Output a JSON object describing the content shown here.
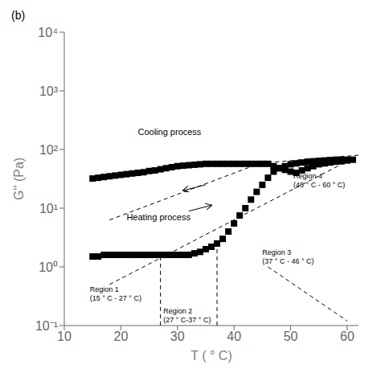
{
  "chart_data": {
    "type": "scatter",
    "title": "(b)",
    "xlabel": "T ( ° C)",
    "ylabel": "G'' (Pa)",
    "log": "y",
    "grid": false,
    "xlim": [
      10,
      62
    ],
    "xticks": [
      10,
      20,
      30,
      40,
      50,
      60
    ],
    "ylim": [
      0.1,
      10000
    ],
    "yticks": [
      {
        "value": 0.1,
        "label": "10⁻¹"
      },
      {
        "value": 1,
        "label": "10⁰"
      },
      {
        "value": 10,
        "label": "10¹"
      },
      {
        "value": 100,
        "label": "10²"
      },
      {
        "value": 1000,
        "label": "10³"
      },
      {
        "value": 10000,
        "label": "10⁴"
      }
    ],
    "series": [
      {
        "x": [
          15,
          16,
          17,
          18,
          19,
          20,
          21,
          22,
          23,
          24,
          25,
          26,
          27,
          28,
          29,
          30,
          31,
          32,
          33,
          34,
          35,
          36,
          37,
          38,
          39,
          40,
          41,
          42,
          43,
          44,
          45,
          46,
          47,
          48,
          49,
          50,
          51,
          52,
          53,
          54,
          55,
          56,
          57,
          58,
          59,
          60,
          61
        ],
        "values": [
          32,
          33,
          34,
          35,
          36,
          37,
          38,
          39,
          40,
          41,
          43,
          44,
          46,
          48,
          50,
          52,
          53,
          54,
          55,
          56,
          57,
          57,
          57,
          57,
          57,
          57,
          57,
          57,
          57,
          57,
          57,
          57,
          52,
          48,
          45,
          42,
          40,
          44,
          48,
          52,
          56,
          58,
          60,
          62,
          63,
          65,
          67
        ],
        "color": "black",
        "marker": "square"
      },
      {
        "x": [
          15,
          16,
          17,
          18,
          19,
          20,
          21,
          22,
          23,
          24,
          25,
          26,
          27,
          28,
          29,
          30,
          31,
          32,
          33,
          34,
          35,
          36,
          37,
          38,
          39,
          40,
          41,
          42,
          43,
          44,
          45,
          46,
          47,
          48,
          49,
          50,
          51,
          52,
          53,
          54,
          55,
          56,
          57,
          58,
          59,
          60
        ],
        "values": [
          1.5,
          1.5,
          1.6,
          1.6,
          1.6,
          1.6,
          1.6,
          1.6,
          1.6,
          1.6,
          1.6,
          1.6,
          1.6,
          1.6,
          1.6,
          1.6,
          1.6,
          1.6,
          1.7,
          1.8,
          2.0,
          2.2,
          2.5,
          3.0,
          4.0,
          5.5,
          7.5,
          10.0,
          14.0,
          19.0,
          25.0,
          33.0,
          42.0,
          48.0,
          52.0,
          56.0,
          58.0,
          60.0,
          62.0,
          63.0,
          64.0,
          65.0,
          66.0,
          67.0,
          67.0,
          67.0
        ],
        "color": "black",
        "marker": "square"
      }
    ],
    "lines": [
      {
        "x": [
          18,
          60
        ],
        "values": [
          0.5011872336272722,
          63.09573444801933
        ],
        "color": "black",
        "line_style": "dashed"
      },
      {
        "x": [
          18,
          45
        ],
        "values": [
          6.309573444801933,
          60.25595860743578
        ],
        "color": "black",
        "line_style": "dashed"
      },
      {
        "x": [
          27,
          27
        ],
        "values": [
          0.1,
          1.6
        ],
        "color": "black",
        "line_style": "dashed"
      },
      {
        "x": [
          37,
          37
        ],
        "values": [
          0.1,
          2.5
        ],
        "color": "black",
        "line_style": "dashed"
      },
      {
        "x": [
          46,
          60
        ],
        "values": [
          1.0,
          0.12
        ],
        "color": "black",
        "line_style": "dashed"
      },
      {
        "x": [
          46,
          62
        ],
        "values": [
          60,
          80
        ],
        "color": "black",
        "line_style": "dashed"
      }
    ],
    "arrows": [
      {
        "x": [
          35,
          31
        ],
        "values": [
          25.118864315095795,
          19.952623149688797
        ],
        "color": "black"
      },
      {
        "x": [
          32,
          36
        ],
        "values": [
          8.912509381337454,
          11.220184543019636
        ],
        "color": "black"
      }
    ],
    "annotations": [
      {
        "text": "Cooling process",
        "x": 23,
        "y": 200
      },
      {
        "text": "Heating process",
        "x": 21,
        "y": 7
      },
      {
        "text": "Region 1\n(15 ° C - 27 ° C)",
        "x": 14.5,
        "y": 0.35
      },
      {
        "text": "Region 2\n(27 ° C-37 ° C)",
        "x": 27.5,
        "y": 0.15
      },
      {
        "text": "Region 3\n(37 ° C - 46 ° C)",
        "x": 45,
        "y": 1.5
      },
      {
        "text": "Region 4\n(46 ° C - 60 ° C)",
        "x": 50.5,
        "y": 30
      }
    ]
  }
}
